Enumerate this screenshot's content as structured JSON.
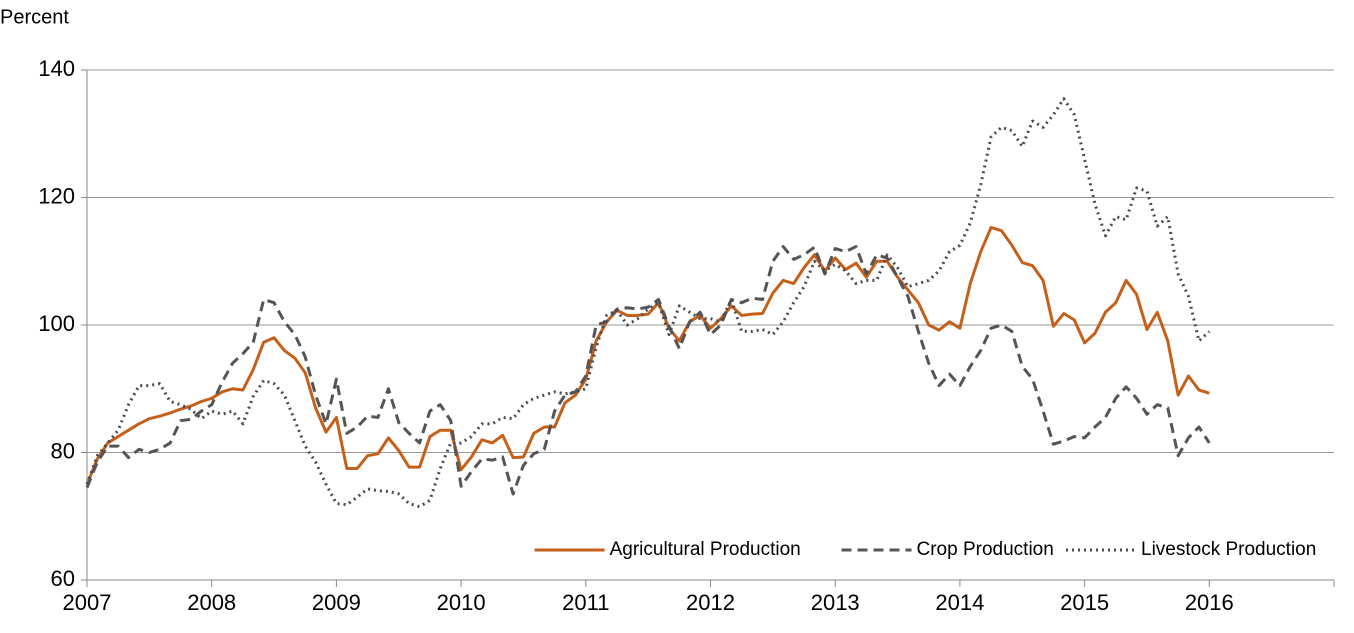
{
  "chart_data": {
    "type": "line",
    "y_label": "Percent",
    "x": [
      2007,
      2007.083,
      2007.167,
      2007.25,
      2007.333,
      2007.417,
      2007.5,
      2007.583,
      2007.667,
      2007.75,
      2007.833,
      2007.917,
      2008,
      2008.083,
      2008.167,
      2008.25,
      2008.333,
      2008.417,
      2008.5,
      2008.583,
      2008.667,
      2008.75,
      2008.833,
      2008.917,
      2009,
      2009.083,
      2009.167,
      2009.25,
      2009.333,
      2009.417,
      2009.5,
      2009.583,
      2009.667,
      2009.75,
      2009.833,
      2009.917,
      2010,
      2010.083,
      2010.167,
      2010.25,
      2010.333,
      2010.417,
      2010.5,
      2010.583,
      2010.667,
      2010.75,
      2010.833,
      2010.917,
      2011,
      2011.083,
      2011.167,
      2011.25,
      2011.333,
      2011.417,
      2011.5,
      2011.583,
      2011.667,
      2011.75,
      2011.833,
      2011.917,
      2012,
      2012.083,
      2012.167,
      2012.25,
      2012.333,
      2012.417,
      2012.5,
      2012.583,
      2012.667,
      2012.75,
      2012.833,
      2012.917,
      2013,
      2013.083,
      2013.167,
      2013.25,
      2013.333,
      2013.417,
      2013.5,
      2013.583,
      2013.667,
      2013.75,
      2013.833,
      2013.917,
      2014,
      2014.083,
      2014.167,
      2014.25,
      2014.333,
      2014.417,
      2014.5,
      2014.583,
      2014.667,
      2014.75,
      2014.833,
      2014.917,
      2015,
      2015.083,
      2015.167,
      2015.25,
      2015.333,
      2015.417,
      2015.5,
      2015.583,
      2015.667,
      2015.75,
      2015.833,
      2015.917,
      2016
    ],
    "series": [
      {
        "name": "Agricultural Production",
        "color": "#c5601b",
        "style": "solid",
        "values": [
          75,
          79,
          81.5,
          82.5,
          83.5,
          84.5,
          85.3,
          85.7,
          86.2,
          86.8,
          87.3,
          88,
          88.5,
          89.5,
          90,
          89.8,
          93,
          97.3,
          98,
          96,
          94.8,
          92.5,
          87,
          83.2,
          85.5,
          77.5,
          77.5,
          79.5,
          79.8,
          82.3,
          80.3,
          77.7,
          77.7,
          82.5,
          83.5,
          83.5,
          77.3,
          79.3,
          82,
          81.5,
          82.7,
          79.2,
          79.3,
          83,
          84,
          84,
          87.8,
          89,
          91.5,
          97.5,
          100.5,
          102.3,
          101.5,
          101.5,
          101.7,
          103.5,
          99.5,
          97.5,
          100.5,
          101.5,
          99.5,
          101,
          103,
          101.5,
          101.7,
          101.8,
          105,
          107,
          106.5,
          109,
          111,
          108.5,
          110.5,
          108.7,
          109.7,
          107.5,
          110,
          110,
          107.5,
          105.5,
          103.5,
          100,
          99.2,
          100.5,
          99.5,
          106.5,
          111.5,
          115.3,
          114.8,
          112.5,
          109.8,
          109.3,
          107,
          99.8,
          101.8,
          100.8,
          97.2,
          98.7,
          102,
          103.5,
          107,
          104.8,
          99.3,
          102,
          97.5,
          89,
          92,
          89.8,
          89.3
        ]
      },
      {
        "name": "Crop Production",
        "color": "#555555",
        "style": "dashed",
        "values": [
          74.5,
          78.5,
          81,
          81,
          79.2,
          80.5,
          80,
          80.5,
          81.5,
          85,
          85.2,
          86.5,
          87.5,
          91,
          94,
          95.5,
          97.3,
          104,
          103.5,
          100.5,
          98.5,
          95,
          89,
          84.5,
          91.5,
          83,
          84,
          85.7,
          85.5,
          90,
          84.7,
          83,
          81.5,
          86.5,
          87.5,
          85,
          74.7,
          77,
          79,
          78.8,
          79.3,
          73.5,
          78,
          79.8,
          80.5,
          86.5,
          89,
          89.5,
          92,
          100,
          100.5,
          102.5,
          102.7,
          102.5,
          102.8,
          104,
          99.8,
          96.3,
          100.5,
          102,
          98.5,
          100,
          104,
          103.5,
          104.2,
          104,
          110,
          112.3,
          110.3,
          111,
          112.2,
          108,
          112,
          111.5,
          112.3,
          108,
          111,
          110.5,
          107.5,
          104.5,
          99,
          94,
          90.5,
          92.3,
          90.5,
          93.5,
          96,
          99.5,
          100,
          99,
          93.5,
          91.5,
          86.5,
          81.3,
          81.8,
          82.5,
          82.3,
          84,
          85.5,
          88.5,
          90.3,
          88.5,
          86,
          87.5,
          87,
          79.5,
          82.3,
          84,
          81.5
        ]
      },
      {
        "name": "Livestock Production",
        "color": "#4a4a55",
        "style": "dotted",
        "values": [
          75,
          79.5,
          81.5,
          83.5,
          87.5,
          90.5,
          90.5,
          90.8,
          88,
          87.5,
          86.8,
          85.3,
          86.5,
          86,
          86.5,
          84.5,
          88.8,
          91.3,
          90.8,
          89,
          85,
          81,
          78.5,
          75,
          72,
          71.8,
          73,
          74.3,
          74,
          73.9,
          73.5,
          72,
          71.5,
          72.5,
          77.5,
          81.5,
          81.5,
          82.5,
          84.5,
          84.5,
          85.5,
          85.3,
          87.5,
          88.5,
          89,
          89.5,
          89.2,
          89.5,
          90,
          96.5,
          101.5,
          102.3,
          100,
          101,
          102.5,
          103.5,
          98.5,
          103,
          102,
          101,
          101,
          100.5,
          104,
          99,
          99,
          99.3,
          98.5,
          100.5,
          103.5,
          106,
          110,
          108.5,
          109.5,
          108.5,
          106.5,
          107,
          107,
          111,
          109,
          106,
          106.5,
          107,
          108.5,
          111.5,
          112.5,
          116,
          122,
          129.5,
          131,
          130.5,
          128,
          132,
          131,
          133,
          135.5,
          133,
          126,
          119,
          114,
          117,
          116.5,
          121.5,
          121,
          115.5,
          117,
          108,
          104.5,
          97.5,
          99
        ]
      }
    ],
    "xlim": [
      2007,
      2017
    ],
    "xticks": [
      2007,
      2008,
      2009,
      2010,
      2011,
      2012,
      2013,
      2014,
      2015,
      2016
    ],
    "ylim": [
      60,
      140
    ],
    "yticks": [
      60,
      80,
      100,
      120,
      140
    ],
    "grid": true,
    "legend": "bottom-right"
  }
}
